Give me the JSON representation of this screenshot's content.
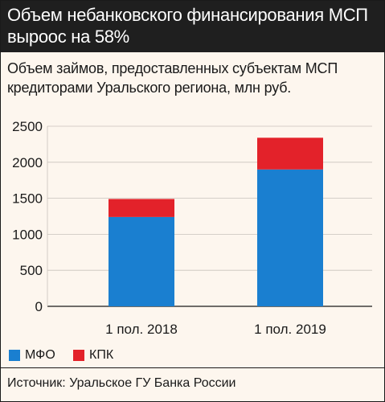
{
  "header": {
    "title": "Объем небанковского финансирования МСП выроос на 58%",
    "subtitle": "Объем займов, предоставленных субъектам МСП кредиторами Уральского региона, млн руб."
  },
  "legend": {
    "items": [
      {
        "label": "МФО",
        "color": "#1a7fd0"
      },
      {
        "label": "КПК",
        "color": "#e3222a"
      }
    ]
  },
  "footer": {
    "source": "Источник: Уральское ГУ Банка России"
  },
  "chart_data": {
    "type": "bar",
    "stacked": true,
    "categories": [
      "1 пол. 2018",
      "1 пол. 2019"
    ],
    "series": [
      {
        "name": "МФО",
        "values": [
          1240,
          1900
        ],
        "color": "#1a7fd0"
      },
      {
        "name": "КПК",
        "values": [
          250,
          440
        ],
        "color": "#e3222a"
      }
    ],
    "ylim": [
      0,
      2500
    ],
    "yticks": [
      0,
      500,
      1000,
      1500,
      2000,
      2500
    ],
    "grid": true,
    "legend_position": "bottom-left"
  }
}
